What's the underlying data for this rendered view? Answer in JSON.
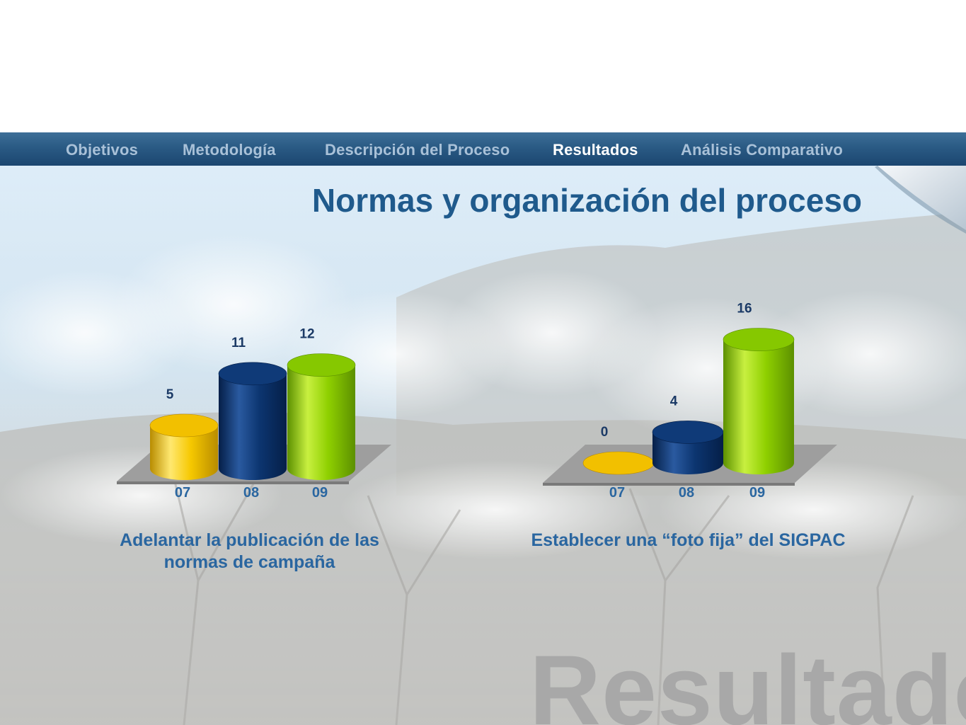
{
  "nav": {
    "items": [
      "Objetivos",
      "Metodología",
      "Descripción del Proceso",
      "Resultados",
      "Análisis Comparativo"
    ],
    "active_index": 3
  },
  "title": "Normas y organización del proceso",
  "watermark": "Resultados",
  "colors": {
    "nav": "#2a5a84",
    "title": "#1f5a8c",
    "caption": "#2a66a0",
    "value_labels": "#1b3a66",
    "yellow": "#f6c800",
    "navy": "#0c3570",
    "green": "#8fd000",
    "floor": "#9e9e9e"
  },
  "chart_data": [
    {
      "type": "bar",
      "style": "3d-cylinder",
      "categories": [
        "07",
        "08",
        "09"
      ],
      "values": [
        5,
        11,
        12
      ],
      "caption": "Adelantar la publicación de las normas de campaña",
      "ylim": [
        0,
        16
      ],
      "grid": false,
      "bar_colors": [
        "yellow",
        "navy",
        "green"
      ]
    },
    {
      "type": "bar",
      "style": "3d-cylinder",
      "categories": [
        "07",
        "08",
        "09"
      ],
      "values": [
        0,
        4,
        16
      ],
      "caption": "Establecer una “foto fija” del SIGPAC",
      "ylim": [
        0,
        16
      ],
      "grid": false,
      "bar_colors": [
        "yellow",
        "navy",
        "green"
      ]
    }
  ]
}
